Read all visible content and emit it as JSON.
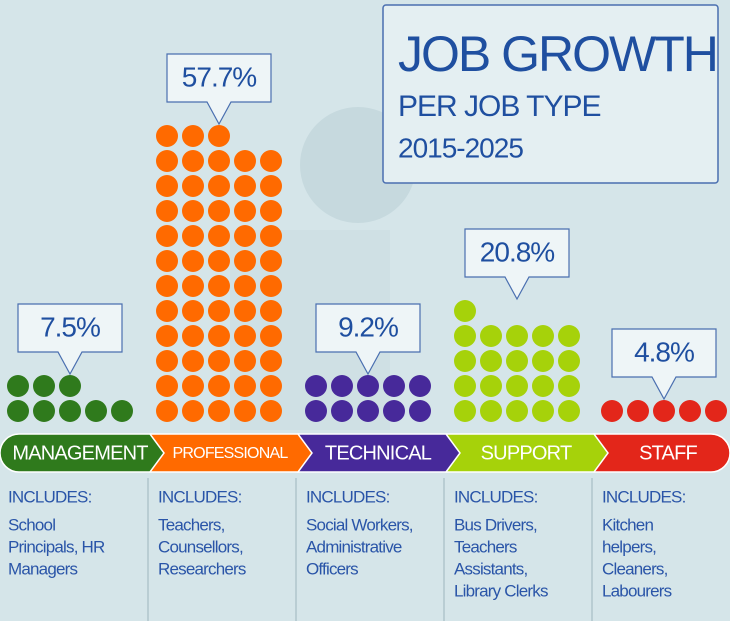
{
  "chart_data": {
    "type": "dot-pictograph",
    "title": "JOB GROWTH",
    "subtitle": [
      "PER JOB TYPE",
      "2015-2025"
    ],
    "categories": [
      "MANAGEMENT",
      "PROFESSIONAL",
      "TECHNICAL",
      "SUPPORT",
      "STAFF"
    ],
    "values": [
      7.5,
      57.7,
      9.2,
      20.8,
      4.8
    ],
    "value_labels": [
      "7.5%",
      "57.7%",
      "9.2%",
      "20.8%",
      "4.8%"
    ],
    "colors": [
      "#2f7a1c",
      "#ff6a00",
      "#47299a",
      "#a6d20a",
      "#e3261a"
    ],
    "details": [
      {
        "heading": "INCLUDES:",
        "lines": [
          "School",
          "Principals, HR",
          "Managers"
        ]
      },
      {
        "heading": "INCLUDES:",
        "lines": [
          "Teachers,",
          "Counsellors,",
          "Researchers"
        ]
      },
      {
        "heading": "INCLUDES:",
        "lines": [
          "Social Workers,",
          "Administrative",
          "Officers"
        ]
      },
      {
        "heading": "INCLUDES:",
        "lines": [
          "Bus Drivers,",
          "Teachers",
          "Assistants,",
          "Library Clerks"
        ]
      },
      {
        "heading": "INCLUDES:",
        "lines": [
          "Kitchen",
          "helpers,",
          "Cleaners,",
          "Labourers"
        ]
      }
    ]
  }
}
